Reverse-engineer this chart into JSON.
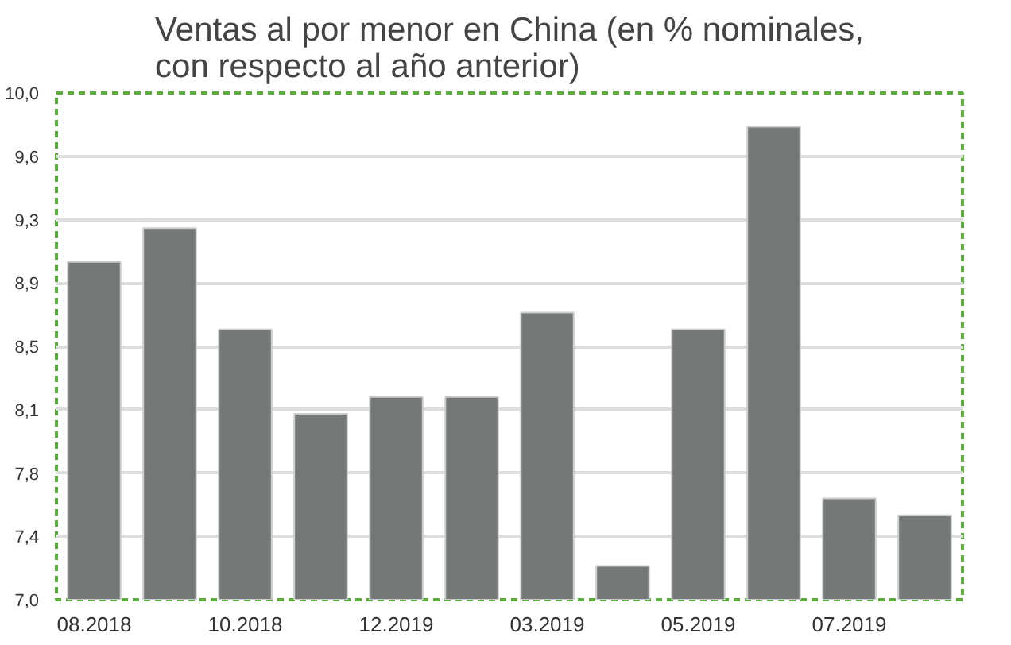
{
  "chart_data": {
    "type": "bar",
    "title": "Ventas al por menor en China (en % nominales,\ncon respecto al año anterior)",
    "categories": [
      "08.2018",
      null,
      "10.2018",
      null,
      "12.2019",
      null,
      "03.2019",
      null,
      "05.2019",
      null,
      "07.2019",
      null
    ],
    "values": [
      9.0,
      9.2,
      8.6,
      8.1,
      8.2,
      8.2,
      8.7,
      7.2,
      8.6,
      9.8,
      7.6,
      7.5
    ],
    "color": "#747978",
    "ylim": [
      7.0,
      10.0
    ],
    "yticks": [
      {
        "value": 7.0,
        "label": "7,0"
      },
      {
        "value": 7.375,
        "label": "7,4"
      },
      {
        "value": 7.75,
        "label": "7,8"
      },
      {
        "value": 8.125,
        "label": "8,1"
      },
      {
        "value": 8.5,
        "label": "8,5"
      },
      {
        "value": 8.875,
        "label": "8,9"
      },
      {
        "value": 9.25,
        "label": "9,3"
      },
      {
        "value": 9.625,
        "label": "9,6"
      },
      {
        "value": 10.0,
        "label": "10,0"
      }
    ],
    "grid": "y"
  }
}
